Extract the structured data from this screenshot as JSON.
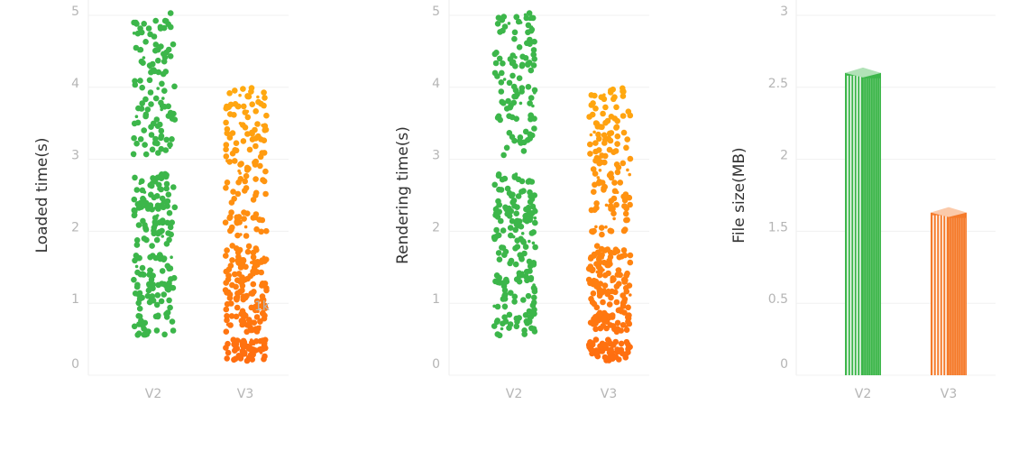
{
  "chart_data": [
    {
      "type": "scatter",
      "subtype": "jitter-strip",
      "xlabel": "",
      "ylabel": "Loaded time(s)",
      "categories": [
        "V2",
        "V3"
      ],
      "yticks": [
        "0",
        "1",
        "2",
        "3",
        "4",
        "5"
      ],
      "ylim": [
        0,
        5
      ],
      "grid": true,
      "annotation": "1k",
      "series": [
        {
          "category": "V2",
          "color": "#3cb64a",
          "clusters": [
            {
              "range": [
                0.55,
                2.8
              ],
              "count": 190
            },
            {
              "range": [
                3.05,
                5.05
              ],
              "count": 110
            }
          ]
        },
        {
          "category": "V3",
          "color_low": "#ff6a10",
          "color_high": "#ffaa10",
          "clusters": [
            {
              "range": [
                0.2,
                0.5
              ],
              "count": 60
            },
            {
              "range": [
                0.6,
                1.8
              ],
              "count": 150
            },
            {
              "range": [
                1.9,
                4.0
              ],
              "count": 130
            }
          ]
        }
      ]
    },
    {
      "type": "scatter",
      "subtype": "jitter-strip",
      "xlabel": "",
      "ylabel": "Rendering time(s)",
      "categories": [
        "V2",
        "V3"
      ],
      "yticks": [
        "0",
        "1",
        "2",
        "3",
        "4",
        "5"
      ],
      "ylim": [
        0,
        5
      ],
      "grid": true,
      "series": [
        {
          "category": "V2",
          "color": "#3cb64a",
          "clusters": [
            {
              "range": [
                0.55,
                2.8
              ],
              "count": 190
            },
            {
              "range": [
                3.05,
                5.05
              ],
              "count": 110
            }
          ]
        },
        {
          "category": "V3",
          "color_low": "#ff6a10",
          "color_high": "#ffaa10",
          "clusters": [
            {
              "range": [
                0.2,
                0.5
              ],
              "count": 60
            },
            {
              "range": [
                0.6,
                1.8
              ],
              "count": 150
            },
            {
              "range": [
                1.9,
                4.0
              ],
              "count": 130
            }
          ]
        }
      ]
    },
    {
      "type": "bar",
      "xlabel": "",
      "ylabel": "File size(MB)",
      "categories": [
        "V2",
        "V3"
      ],
      "values": [
        2.6,
        1.63
      ],
      "colors": [
        "#3cb64a",
        "#f57a2a"
      ],
      "yticks": [
        "0",
        "0.5",
        "1.5",
        "2",
        "2.5",
        "3"
      ],
      "grid": true
    }
  ]
}
